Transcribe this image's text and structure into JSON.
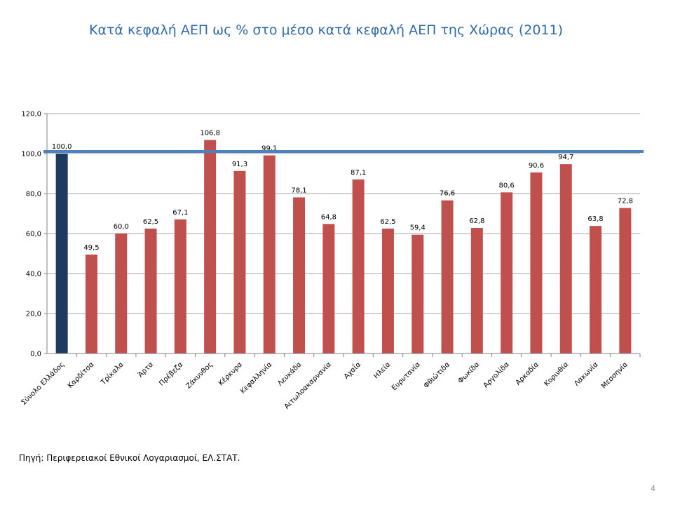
{
  "title": "Κατά κεφαλή ΑΕΠ ως % στο μέσο κατά κεφαλή ΑΕΠ της Χώρας (2011)",
  "source": "Πηγή: Περιφερειακοί Εθνικοί Λογαριασμοί, ΕΛ.ΣΤΑΤ.",
  "page_number": "4",
  "colors": {
    "total_bar": "#1f3a5f",
    "bar": "#c0504d",
    "reference_line": "#4f81bd",
    "grid": "#a6a6a6"
  },
  "chart_data": {
    "type": "bar",
    "categories": [
      "Σύνολο Ελλάδος",
      "Καρδίτσα",
      "Τρίκαλα",
      "Άρτα",
      "Πρέβεζα",
      "Ζάκυνθος",
      "Κέρκυρα",
      "Κεφαλληνία",
      "Λευκάδα",
      "Αιτωλοακαρνανία",
      "Αχαΐα",
      "Ηλεία",
      "Ευρυτανία",
      "Φθιώτιδα",
      "Φωκίδα",
      "Αργολίδα",
      "Αρκαδία",
      "Κορινθία",
      "Λακωνία",
      "Μεσσηνία"
    ],
    "values": [
      100.0,
      49.5,
      60.0,
      62.5,
      67.1,
      106.8,
      91.3,
      99.1,
      78.1,
      64.8,
      87.1,
      62.5,
      59.4,
      76.6,
      62.8,
      80.6,
      90.6,
      94.7,
      63.8,
      72.8
    ],
    "data_labels": [
      "100,0",
      "49,5",
      "60,0",
      "62,5",
      "67,1",
      "106,8",
      "91,3",
      "99,1",
      "78,1",
      "64,8",
      "87,1",
      "62,5",
      "59,4",
      "76,6",
      "62,8",
      "80,6",
      "90,6",
      "94,7",
      "63,8",
      "72,8"
    ],
    "highlight_index": 0,
    "reference_value": 100,
    "ylim": [
      0,
      120
    ],
    "yticks": [
      0,
      20,
      40,
      60,
      80,
      100,
      120
    ],
    "ytick_labels": [
      "0,0",
      "20,0",
      "40,0",
      "60,0",
      "80,0",
      "100,0",
      "120,0"
    ],
    "xlabel": "",
    "ylabel": "",
    "grid": true,
    "legend": false
  }
}
